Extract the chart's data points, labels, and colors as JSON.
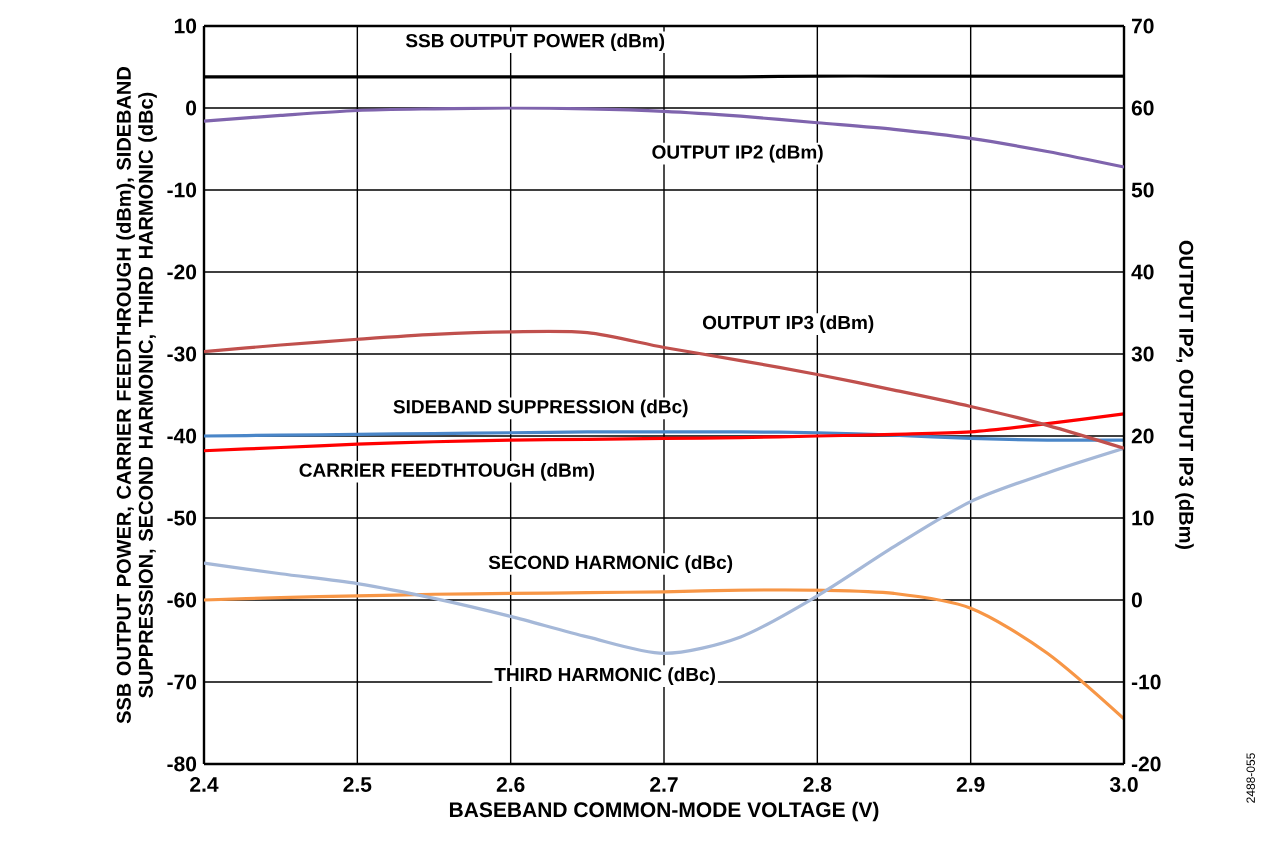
{
  "chart_data": {
    "type": "line",
    "xlabel": "BASEBAND COMMON-MODE VOLTAGE (V)",
    "ylabel": "SSB OUTPUT POWER, CARRIER FEEDTHROUGH (dBm), SIDEBAND SUPPRESSION, SECOND HARMONIC, THIRD HARMONIC (dBc)",
    "y2label": "OUTPUT IP2, OUTPUT IP3 (dBm)",
    "annotations": [
      "2488-055"
    ],
    "x": [
      2.4,
      2.45,
      2.5,
      2.55,
      2.6,
      2.65,
      2.7,
      2.75,
      2.8,
      2.85,
      2.9,
      2.95,
      3.0
    ],
    "xlim": [
      2.4,
      3.0
    ],
    "xticks": [
      2.4,
      2.5,
      2.6,
      2.7,
      2.8,
      2.9,
      {
        "value": 3,
        "label": "3.0"
      }
    ],
    "ylim": [
      -80,
      10
    ],
    "yticks": [
      -80,
      -70,
      -60,
      -50,
      -40,
      -30,
      -20,
      -10,
      0,
      10
    ],
    "y2lim": [
      -20,
      70
    ],
    "y2ticks": [
      -20,
      -10,
      0,
      10,
      20,
      30,
      40,
      50,
      60,
      70
    ],
    "grid": true,
    "legend": false,
    "series": [
      {
        "name": "SSB OUTPUT POWER (dBm)",
        "color": "#000000",
        "values": [
          3.8,
          3.8,
          3.8,
          3.8,
          3.8,
          3.8,
          3.8,
          3.8,
          3.9,
          3.9,
          3.9,
          3.9,
          3.9
        ]
      },
      {
        "name": "OUTPUT IP2 (dBm)",
        "color": "#7f64ad",
        "axis": "y2",
        "values": [
          58.4,
          59.1,
          59.7,
          59.9,
          60,
          59.9,
          59.6,
          59.0,
          58.2,
          57.4,
          56.3,
          54.7,
          52.8
        ]
      },
      {
        "name": "OUTPUT IP3 (dBm)",
        "color": "#c0504d",
        "axis": "y2",
        "values": [
          30.3,
          31.1,
          31.8,
          32.4,
          32.7,
          32.6,
          30.8,
          29.2,
          27.5,
          25.6,
          23.6,
          21.3,
          18.5
        ]
      },
      {
        "name": "SIDEBAND SUPPRESSION (dBc)",
        "color": "#4a86c8",
        "values": [
          -40,
          -39.9,
          -39.8,
          -39.7,
          -39.6,
          -39.5,
          -39.5,
          -39.5,
          -39.6,
          -39.9,
          -40.3,
          -40.5,
          -40.5
        ]
      },
      {
        "name": "CARRIER FEEDTHTOUGH (dBm)",
        "color": "#ff0000",
        "values": [
          -41.8,
          -41.4,
          -41,
          -40.7,
          -40.5,
          -40.4,
          -40.3,
          -40.2,
          -40,
          -39.8,
          -39.5,
          -38.5,
          -37.3
        ]
      },
      {
        "name": "SECOND HARMONIC (dBc)",
        "color": "#f79646",
        "values": [
          -60,
          -59.7,
          -59.5,
          -59.3,
          -59.2,
          -59.1,
          -59,
          -58.8,
          -58.8,
          -59.2,
          -61,
          -66.5,
          -74.5
        ]
      },
      {
        "name": "THIRD HARMONIC (dBc)",
        "color": "#a5b8d8",
        "values": [
          -55.5,
          -56.8,
          -58,
          -59.8,
          -62,
          -64.5,
          -66.5,
          -64.5,
          -59.5,
          -53.5,
          -48,
          -44.5,
          -41.5
        ]
      }
    ]
  }
}
